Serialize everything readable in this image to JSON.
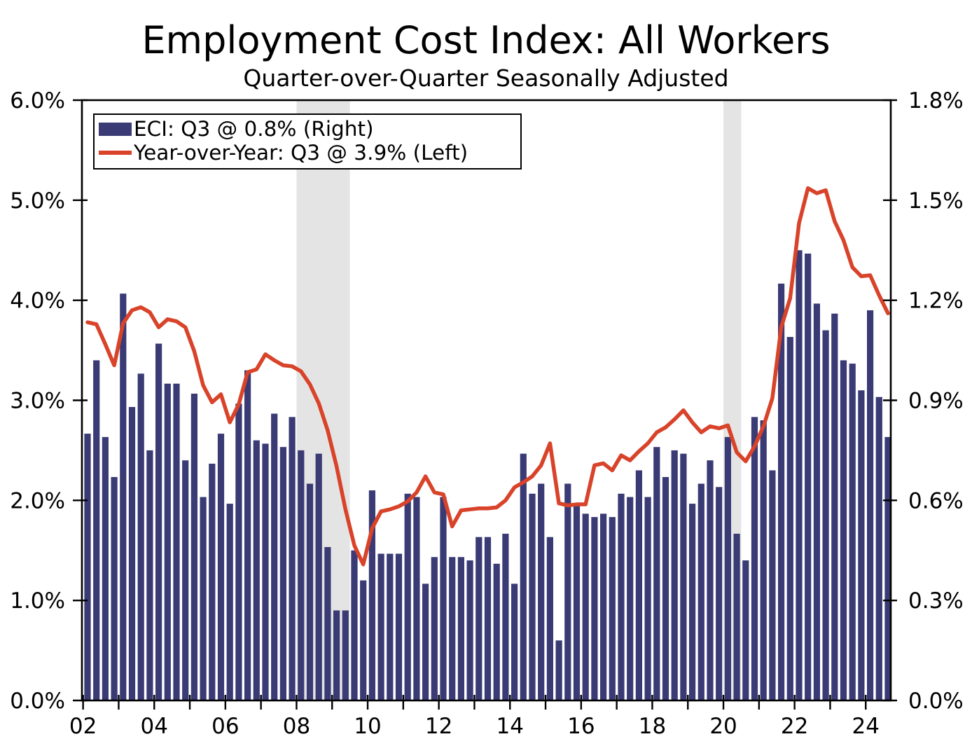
{
  "chart_data": {
    "type": "bar+line",
    "title": "Employment Cost Index: All Workers",
    "subtitle": "Quarter-over-Quarter Seasonally Adjusted",
    "grid": false,
    "background": "#ffffff",
    "plot_border_color": "#000000",
    "band_color": "#e4e4e4",
    "legend": {
      "position": "top-left",
      "items": [
        {
          "label": "ECI: Q3 @ 0.8% (Right)",
          "swatch": "bar-swatch",
          "color": "#3a3a75"
        },
        {
          "label": "Year-over-Year: Q3 @ 3.9% (Left)",
          "swatch": "line-swatch",
          "color": "#d8432a"
        }
      ]
    },
    "left_axis": {
      "min": 0,
      "max": 6,
      "tick_labels": [
        "0.0%",
        "1.0%",
        "2.0%",
        "3.0%",
        "4.0%",
        "5.0%",
        "6.0%"
      ]
    },
    "right_axis": {
      "min": 0,
      "max": 1.8,
      "tick_labels": [
        "0.0%",
        "0.3%",
        "0.6%",
        "0.9%",
        "1.2%",
        "1.5%",
        "1.8%"
      ]
    },
    "x_axis": {
      "first_year": 2002,
      "last_year": 2024,
      "label_every_years": 2,
      "tick_labels": [
        "02",
        "04",
        "06",
        "08",
        "10",
        "12",
        "14",
        "16",
        "18",
        "20",
        "22",
        "24"
      ]
    },
    "recession_bands": [
      {
        "from": "2008Q1",
        "to": "2009Q2"
      },
      {
        "from": "2020Q1",
        "to": "2020Q2"
      }
    ],
    "quarters": [
      "2002Q1",
      "2002Q2",
      "2002Q3",
      "2002Q4",
      "2003Q1",
      "2003Q2",
      "2003Q3",
      "2003Q4",
      "2004Q1",
      "2004Q2",
      "2004Q3",
      "2004Q4",
      "2005Q1",
      "2005Q2",
      "2005Q3",
      "2005Q4",
      "2006Q1",
      "2006Q2",
      "2006Q3",
      "2006Q4",
      "2007Q1",
      "2007Q2",
      "2007Q3",
      "2007Q4",
      "2008Q1",
      "2008Q2",
      "2008Q3",
      "2008Q4",
      "2009Q1",
      "2009Q2",
      "2009Q3",
      "2009Q4",
      "2010Q1",
      "2010Q2",
      "2010Q3",
      "2010Q4",
      "2011Q1",
      "2011Q2",
      "2011Q3",
      "2011Q4",
      "2012Q1",
      "2012Q2",
      "2012Q3",
      "2012Q4",
      "2013Q1",
      "2013Q2",
      "2013Q3",
      "2013Q4",
      "2014Q1",
      "2014Q2",
      "2014Q3",
      "2014Q4",
      "2015Q1",
      "2015Q2",
      "2015Q3",
      "2015Q4",
      "2016Q1",
      "2016Q2",
      "2016Q3",
      "2016Q4",
      "2017Q1",
      "2017Q2",
      "2017Q3",
      "2017Q4",
      "2018Q1",
      "2018Q2",
      "2018Q3",
      "2018Q4",
      "2019Q1",
      "2019Q2",
      "2019Q3",
      "2019Q4",
      "2020Q1",
      "2020Q2",
      "2020Q3",
      "2020Q4",
      "2021Q1",
      "2021Q2",
      "2021Q3",
      "2021Q4",
      "2022Q1",
      "2022Q2",
      "2022Q3",
      "2022Q4",
      "2023Q1",
      "2023Q2",
      "2023Q3",
      "2023Q4",
      "2024Q1",
      "2024Q2",
      "2024Q3"
    ],
    "series": [
      {
        "name": "ECI QoQ",
        "type": "bar",
        "axis": "right",
        "color": "#3a3a75",
        "values": [
          0.8,
          1.02,
          0.79,
          0.67,
          1.22,
          0.88,
          0.98,
          0.75,
          1.07,
          0.95,
          0.95,
          0.72,
          0.92,
          0.61,
          0.71,
          0.8,
          0.59,
          0.89,
          0.99,
          0.78,
          0.77,
          0.86,
          0.76,
          0.85,
          0.75,
          0.65,
          0.74,
          0.46,
          0.27,
          0.27,
          0.45,
          0.36,
          0.63,
          0.44,
          0.44,
          0.44,
          0.62,
          0.61,
          0.35,
          0.43,
          0.61,
          0.43,
          0.43,
          0.42,
          0.49,
          0.49,
          0.41,
          0.5,
          0.35,
          0.74,
          0.62,
          0.65,
          0.49,
          0.18,
          0.65,
          0.59,
          0.56,
          0.55,
          0.56,
          0.55,
          0.62,
          0.61,
          0.69,
          0.61,
          0.76,
          0.67,
          0.75,
          0.74,
          0.59,
          0.65,
          0.72,
          0.64,
          0.79,
          0.5,
          0.42,
          0.85,
          0.84,
          0.69,
          1.25,
          1.09,
          1.35,
          1.34,
          1.19,
          1.11,
          1.16,
          1.02,
          1.01,
          0.93,
          1.17,
          0.91,
          0.79
        ]
      },
      {
        "name": "Year-over-Year",
        "type": "line",
        "axis": "left",
        "color": "#d8432a",
        "values": [
          3.78,
          3.76,
          3.56,
          3.35,
          3.77,
          3.9,
          3.93,
          3.88,
          3.73,
          3.81,
          3.79,
          3.73,
          3.49,
          3.15,
          2.98,
          3.06,
          2.78,
          2.96,
          3.28,
          3.31,
          3.46,
          3.4,
          3.35,
          3.34,
          3.29,
          3.16,
          2.97,
          2.7,
          2.34,
          1.91,
          1.55,
          1.36,
          1.72,
          1.89,
          1.91,
          1.94,
          1.99,
          2.08,
          2.24,
          2.08,
          2.06,
          1.74,
          1.9,
          1.91,
          1.92,
          1.92,
          1.93,
          2.0,
          2.13,
          2.18,
          2.24,
          2.35,
          2.57,
          1.97,
          1.95,
          1.96,
          1.96,
          2.35,
          2.37,
          2.3,
          2.45,
          2.4,
          2.49,
          2.57,
          2.68,
          2.73,
          2.81,
          2.9,
          2.78,
          2.68,
          2.74,
          2.72,
          2.75,
          2.48,
          2.39,
          2.54,
          2.74,
          3.02,
          3.73,
          4.02,
          4.77,
          5.12,
          5.07,
          5.1,
          4.79,
          4.6,
          4.33,
          4.24,
          4.25,
          4.05,
          3.87
        ]
      }
    ]
  }
}
